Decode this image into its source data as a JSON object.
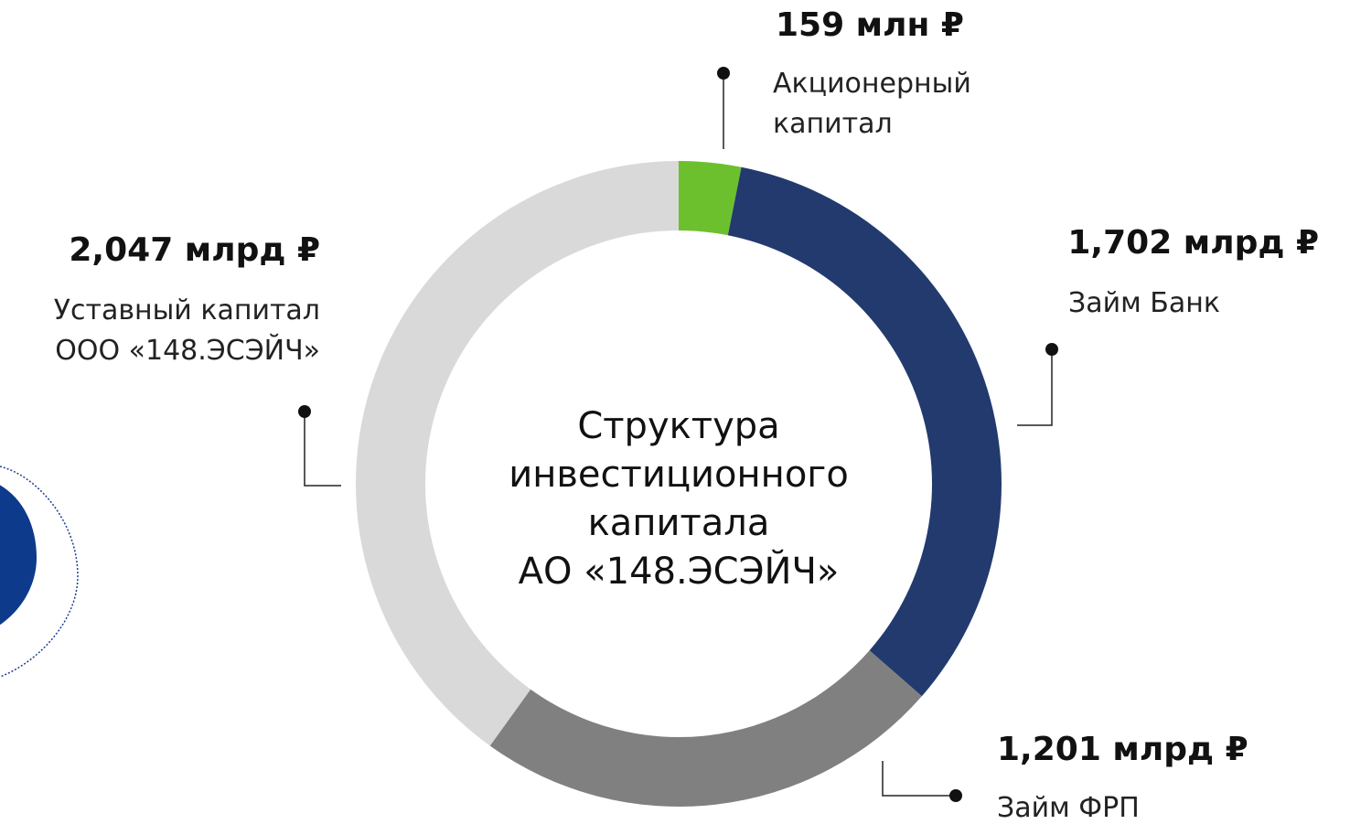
{
  "chart_data": {
    "type": "donut",
    "title": "Структура\nинвестиционного\nкапитала\nАО «148.ЭСЭЙЧ»",
    "categories": [
      "Акционерный\nкапитал",
      "Займ Банк",
      "Займ ФРП",
      "Уставный капитал\nООО «148.ЭСЭЙЧ»"
    ],
    "values": [
      159,
      1702,
      1201,
      2047
    ],
    "value_labels": [
      "159 млн ₽",
      "1,702 млрд ₽",
      "1,201 млрд ₽",
      "2,047 млрд ₽"
    ],
    "colors": [
      "#6cc02e",
      "#223a6e",
      "#808080",
      "#d9d9d9"
    ]
  }
}
